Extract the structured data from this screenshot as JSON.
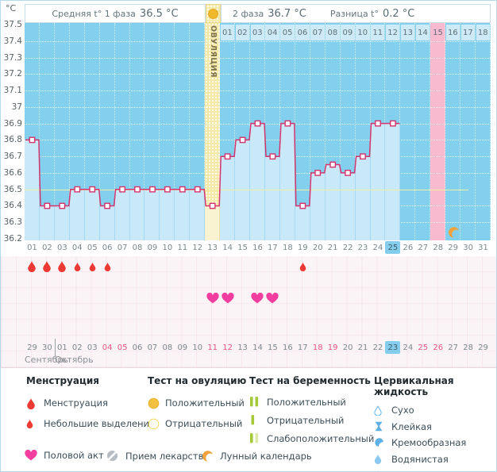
{
  "header": {
    "unit": "°C",
    "phase1_label": "Средняя t° 1 фаза",
    "phase1_value": "36.5 °C",
    "phase2_label": "2 фаза",
    "phase2_value": "36.7 °C",
    "diff_label": "Разница t°",
    "diff_value": "0.2 °C",
    "ovulation_band_label": "ОВУЛЯЦИЯ"
  },
  "chart_data": {
    "type": "line",
    "ylabel": "°C",
    "ylim": [
      36.2,
      37.5
    ],
    "yticks": [
      "37.5",
      "37.4",
      "37.3",
      "37.2",
      "37.1",
      "37",
      "36.9",
      "36.8",
      "36.7",
      "36.6",
      "36.5",
      "36.4",
      "36.3",
      "36.2"
    ],
    "cycle_days": [
      "01",
      "02",
      "03",
      "04",
      "05",
      "06",
      "07",
      "08",
      "09",
      "10",
      "11",
      "12",
      "13",
      "14",
      "15",
      "16",
      "17",
      "18",
      "19",
      "20",
      "21",
      "22",
      "23",
      "24",
      "25",
      "26",
      "27",
      "28",
      "29",
      "30",
      "31"
    ],
    "temperatures_c": [
      36.8,
      36.4,
      36.4,
      36.5,
      36.5,
      36.4,
      36.5,
      36.5,
      36.5,
      36.5,
      36.5,
      36.5,
      36.4,
      36.7,
      36.8,
      36.9,
      36.7,
      36.9,
      36.4,
      36.6,
      36.65,
      36.6,
      36.7,
      36.9,
      36.9,
      null,
      null,
      null,
      null,
      null,
      null
    ],
    "coverline_c": 36.5,
    "ovulation_cycle_day": 13,
    "expected_period_cycle_day": 28,
    "lunar_calendar_cycle_day": 29,
    "current_cycle_day": 25,
    "dpo_numbers": [
      "01",
      "02",
      "03",
      "04",
      "05",
      "06",
      "07",
      "08",
      "09",
      "10",
      "11",
      "12",
      "13",
      "14",
      "15",
      "16",
      "17",
      "18"
    ],
    "dpo_highlighted": "15",
    "grid": "dotted-white",
    "legend_position": "bottom"
  },
  "marks": {
    "menstruation_days": [
      1,
      2,
      3
    ],
    "spotting_days": [
      4,
      5,
      6,
      19
    ],
    "intercourse_days": [
      13,
      14,
      16,
      17
    ]
  },
  "calendar": {
    "dates": [
      "29",
      "30",
      "01",
      "02",
      "03",
      "04",
      "05",
      "06",
      "07",
      "08",
      "09",
      "10",
      "11",
      "12",
      "13",
      "14",
      "15",
      "16",
      "17",
      "18",
      "19",
      "20",
      "21",
      "22",
      "23",
      "24",
      "25",
      "26",
      "27",
      "28",
      "29"
    ],
    "weekend_indices": [
      5,
      6,
      12,
      13,
      19,
      20,
      26,
      27
    ],
    "today_index": 24,
    "month_labels": [
      "Сентябрь",
      "Октябрь"
    ]
  },
  "legend": {
    "columns": [
      {
        "title": "Менструация",
        "items": [
          {
            "icon": "menstruation-drop",
            "label": "Менструация"
          },
          {
            "icon": "spotting-drop",
            "label": "Небольшие выделения"
          }
        ]
      },
      {
        "title": "Тест на овуляцию",
        "items": [
          {
            "icon": "ovulation-test-positive",
            "label": "Положительный"
          },
          {
            "icon": "ovulation-test-negative",
            "label": "Отрицательный"
          }
        ]
      },
      {
        "title": "Тест на беременность",
        "items": [
          {
            "icon": "pregnancy-positive",
            "label": "Положительный"
          },
          {
            "icon": "pregnancy-negative",
            "label": "Отрицательный"
          },
          {
            "icon": "pregnancy-weak",
            "label": "Слабоположительный"
          }
        ]
      },
      {
        "title": "Цервикальная жидкость",
        "items": [
          {
            "icon": "dry",
            "label": "Сухо"
          },
          {
            "icon": "sticky",
            "label": "Клейкая"
          },
          {
            "icon": "creamy",
            "label": "Кремообразная"
          },
          {
            "icon": "watery",
            "label": "Водянистая"
          },
          {
            "icon": "eggwhite",
            "label": "Яичный белок"
          }
        ]
      }
    ],
    "footer_items": [
      {
        "icon": "intercourse-heart",
        "label": "Половой акт"
      },
      {
        "icon": "medication-pill",
        "label": "Прием лекарств"
      },
      {
        "icon": "lunar-moon",
        "label": "Лунный календарь"
      }
    ]
  },
  "colors": {
    "chart_bg": "#82d0ed",
    "chart_fill": "#c9e9f8",
    "temp_line": "#d6336c",
    "ovulation_band": "#f5e9a6",
    "period_band": "#f8bacf",
    "coverline": "#f0efa0",
    "today_highlight": "#85cdec",
    "weekend_text": "#e75480",
    "menstruation": "#ee3a35",
    "intercourse": "#f23f9f",
    "ovulation_test": "#f2c23e",
    "pregnancy_test": "#a5c838",
    "cervical_fluid": "#5fb0e4",
    "moon": "#f0a33c",
    "pill": "#b7bdc3"
  }
}
